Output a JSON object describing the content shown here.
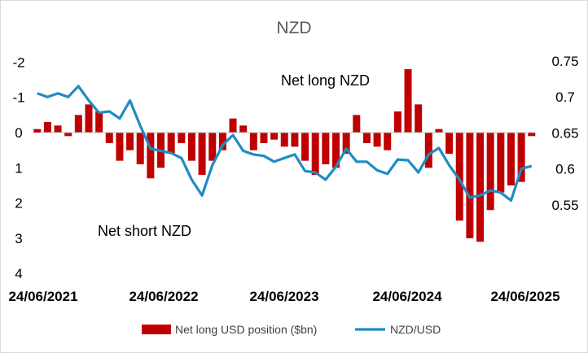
{
  "colors": {
    "bars": "#c00000",
    "line": "#1f8bc4",
    "zero_line": "#bfbfbf"
  },
  "chart_data": {
    "type": "bar",
    "title": "NZD",
    "legend_position": "bottom",
    "annotations": [
      "Net long NZD",
      "Net short NZD"
    ],
    "x_tick_labels": [
      "24/06/2021",
      "24/06/2022",
      "24/06/2023",
      "24/06/2024",
      "24/06/2025"
    ],
    "x_range": [
      "24/06/2021",
      "24/06/2025"
    ],
    "y_left": {
      "ticks": [
        "-2",
        "-1",
        "0",
        "1",
        "2",
        "3",
        "4"
      ],
      "range": [
        4,
        -2.5
      ],
      "inverted": true
    },
    "y_right": {
      "ticks": [
        "0.75",
        "0.7",
        "0.65",
        "0.6",
        "0.55"
      ],
      "range": [
        0.545,
        0.755
      ]
    },
    "series": [
      {
        "name": "Net long USD position ($bn)",
        "type": "bar",
        "axis": "left",
        "points": [
          {
            "x": "2021-06",
            "y": -0.1
          },
          {
            "x": "2021-07",
            "y": -0.3
          },
          {
            "x": "2021-08",
            "y": -0.2
          },
          {
            "x": "2021-09",
            "y": 0.1
          },
          {
            "x": "2021-10",
            "y": -0.5
          },
          {
            "x": "2021-11",
            "y": -0.8
          },
          {
            "x": "2021-12",
            "y": -0.6
          },
          {
            "x": "2022-01",
            "y": 0.3
          },
          {
            "x": "2022-02",
            "y": 0.8
          },
          {
            "x": "2022-03",
            "y": 0.5
          },
          {
            "x": "2022-04",
            "y": 0.9
          },
          {
            "x": "2022-05",
            "y": 1.3
          },
          {
            "x": "2022-06",
            "y": 1.0
          },
          {
            "x": "2022-07",
            "y": 0.6
          },
          {
            "x": "2022-08",
            "y": 0.3
          },
          {
            "x": "2022-09",
            "y": 0.8
          },
          {
            "x": "2022-10",
            "y": 1.2
          },
          {
            "x": "2022-11",
            "y": 0.8
          },
          {
            "x": "2022-12",
            "y": 0.5
          },
          {
            "x": "2023-01",
            "y": -0.4
          },
          {
            "x": "2023-02",
            "y": -0.2
          },
          {
            "x": "2023-03",
            "y": 0.5
          },
          {
            "x": "2023-04",
            "y": 0.3
          },
          {
            "x": "2023-05",
            "y": 0.2
          },
          {
            "x": "2023-06",
            "y": 0.4
          },
          {
            "x": "2023-07",
            "y": 0.4
          },
          {
            "x": "2023-08",
            "y": 0.8
          },
          {
            "x": "2023-09",
            "y": 1.2
          },
          {
            "x": "2023-10",
            "y": 0.9
          },
          {
            "x": "2023-11",
            "y": 1.0
          },
          {
            "x": "2023-12",
            "y": 0.6
          },
          {
            "x": "2024-01",
            "y": -0.5
          },
          {
            "x": "2024-02",
            "y": 0.3
          },
          {
            "x": "2024-03",
            "y": 0.4
          },
          {
            "x": "2024-04",
            "y": 0.5
          },
          {
            "x": "2024-05",
            "y": -0.6
          },
          {
            "x": "2024-06",
            "y": -1.8
          },
          {
            "x": "2024-07",
            "y": -0.8
          },
          {
            "x": "2024-08",
            "y": 1.0
          },
          {
            "x": "2024-09",
            "y": -0.1
          },
          {
            "x": "2024-10",
            "y": 0.6
          },
          {
            "x": "2024-11",
            "y": 2.5
          },
          {
            "x": "2024-12",
            "y": 3.0
          },
          {
            "x": "2025-01",
            "y": 3.1
          },
          {
            "x": "2025-02",
            "y": 2.2
          },
          {
            "x": "2025-03",
            "y": 1.7
          },
          {
            "x": "2025-04",
            "y": 1.5
          },
          {
            "x": "2025-05",
            "y": 1.4
          },
          {
            "x": "2025-06",
            "y": 0.1
          }
        ]
      },
      {
        "name": "NZD/USD",
        "type": "line",
        "axis": "right",
        "points": [
          {
            "x": "2021-06",
            "y": 0.705
          },
          {
            "x": "2021-07",
            "y": 0.7
          },
          {
            "x": "2021-08",
            "y": 0.705
          },
          {
            "x": "2021-09",
            "y": 0.7
          },
          {
            "x": "2021-10",
            "y": 0.715
          },
          {
            "x": "2021-11",
            "y": 0.695
          },
          {
            "x": "2021-12",
            "y": 0.678
          },
          {
            "x": "2022-01",
            "y": 0.68
          },
          {
            "x": "2022-02",
            "y": 0.67
          },
          {
            "x": "2022-03",
            "y": 0.695
          },
          {
            "x": "2022-04",
            "y": 0.66
          },
          {
            "x": "2022-05",
            "y": 0.628
          },
          {
            "x": "2022-06",
            "y": 0.625
          },
          {
            "x": "2022-07",
            "y": 0.622
          },
          {
            "x": "2022-08",
            "y": 0.615
          },
          {
            "x": "2022-09",
            "y": 0.585
          },
          {
            "x": "2022-10",
            "y": 0.563
          },
          {
            "x": "2022-11",
            "y": 0.605
          },
          {
            "x": "2022-12",
            "y": 0.633
          },
          {
            "x": "2023-01",
            "y": 0.647
          },
          {
            "x": "2023-02",
            "y": 0.625
          },
          {
            "x": "2023-03",
            "y": 0.62
          },
          {
            "x": "2023-04",
            "y": 0.618
          },
          {
            "x": "2023-05",
            "y": 0.61
          },
          {
            "x": "2023-06",
            "y": 0.615
          },
          {
            "x": "2023-07",
            "y": 0.62
          },
          {
            "x": "2023-08",
            "y": 0.597
          },
          {
            "x": "2023-09",
            "y": 0.595
          },
          {
            "x": "2023-10",
            "y": 0.585
          },
          {
            "x": "2023-11",
            "y": 0.603
          },
          {
            "x": "2023-12",
            "y": 0.628
          },
          {
            "x": "2024-01",
            "y": 0.61
          },
          {
            "x": "2024-02",
            "y": 0.61
          },
          {
            "x": "2024-03",
            "y": 0.598
          },
          {
            "x": "2024-04",
            "y": 0.593
          },
          {
            "x": "2024-05",
            "y": 0.613
          },
          {
            "x": "2024-06",
            "y": 0.612
          },
          {
            "x": "2024-07",
            "y": 0.595
          },
          {
            "x": "2024-08",
            "y": 0.62
          },
          {
            "x": "2024-09",
            "y": 0.629
          },
          {
            "x": "2024-10",
            "y": 0.605
          },
          {
            "x": "2024-11",
            "y": 0.585
          },
          {
            "x": "2024-12",
            "y": 0.56
          },
          {
            "x": "2025-01",
            "y": 0.563
          },
          {
            "x": "2025-02",
            "y": 0.57
          },
          {
            "x": "2025-03",
            "y": 0.567
          },
          {
            "x": "2025-04",
            "y": 0.556
          },
          {
            "x": "2025-05",
            "y": 0.6
          },
          {
            "x": "2025-06",
            "y": 0.604
          }
        ]
      }
    ]
  }
}
